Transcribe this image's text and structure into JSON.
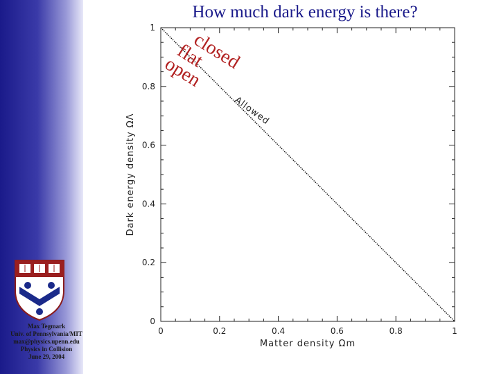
{
  "slide": {
    "title": "How much dark energy is there?",
    "credits": [
      "Max Tegmark",
      "Univ. of Pennsylvania/MIT",
      "max@physics.upenn.edu",
      "Physics in Collision",
      "June 29, 2004"
    ],
    "logo_icon": "penn-shield-icon",
    "sidebar_color": "#1a1a8a"
  },
  "chart_data": {
    "type": "line",
    "xlabel": "Matter density Ωm",
    "ylabel": "Dark energy density ΩΛ",
    "xlim": [
      0,
      1
    ],
    "ylim": [
      0,
      1
    ],
    "xticks": [
      "0",
      "0.2",
      "0.4",
      "0.6",
      "0.8",
      "1"
    ],
    "yticks": [
      "0",
      "0.2",
      "0.4",
      "0.6",
      "0.8",
      "1"
    ],
    "grid": false,
    "series": [
      {
        "x": [
          0,
          1
        ],
        "y": [
          1,
          0
        ],
        "style": "dotted"
      }
    ],
    "annotations": [
      {
        "text": "closed",
        "color": "#b22222"
      },
      {
        "text": "flat",
        "color": "#b22222"
      },
      {
        "text": "open",
        "color": "#b22222"
      },
      {
        "text": "Allowed",
        "color": "#222222"
      }
    ]
  }
}
